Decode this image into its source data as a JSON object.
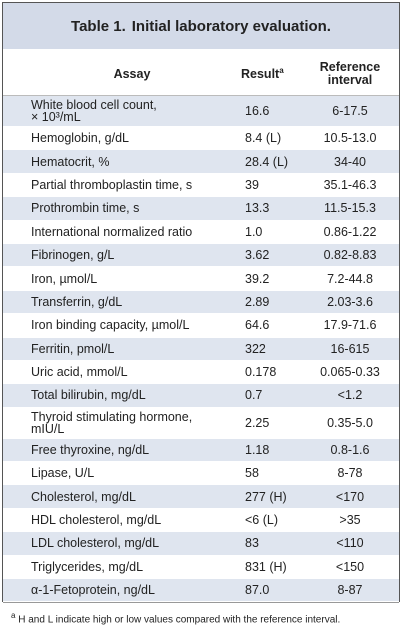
{
  "table": {
    "title_label": "Table 1.",
    "title": "Initial laboratory evaluation.",
    "header": {
      "assay": "Assay",
      "result": "Result",
      "result_note": "a",
      "reference": "Reference\ninterval"
    },
    "rows": [
      [
        "White blood cell count,\n× 10³/mL",
        "16.6",
        "6-17.5"
      ],
      [
        "Hemoglobin, g/dL",
        "8.4 (L)",
        "10.5-13.0"
      ],
      [
        "Hematocrit, %",
        "28.4 (L)",
        "34-40"
      ],
      [
        "Partial thromboplastin time, s",
        "39",
        "35.1-46.3"
      ],
      [
        "Prothrombin time, s",
        "13.3",
        "11.5-15.3"
      ],
      [
        "International normalized ratio",
        "1.0",
        "0.86-1.22"
      ],
      [
        "Fibrinogen, g/L",
        "3.62",
        "0.82-8.83"
      ],
      [
        "Iron, µmol/L",
        "39.2",
        "7.2-44.8"
      ],
      [
        "Transferrin, g/dL",
        "2.89",
        "2.03-3.6"
      ],
      [
        "Iron binding capacity, µmol/L",
        "64.6",
        "17.9-71.6"
      ],
      [
        "Ferritin, pmol/L",
        "322",
        "16-615"
      ],
      [
        "Uric acid, mmol/L",
        "0.178",
        "0.065-0.33"
      ],
      [
        "Total bilirubin, mg/dL",
        "0.7",
        "<1.2"
      ],
      [
        "Thyroid stimulating hormone,\nmIU/L",
        "2.25",
        "0.35-5.0"
      ],
      [
        "Free thyroxine, ng/dL",
        "1.18",
        "0.8-1.6"
      ],
      [
        "Lipase, U/L",
        "58",
        "8-78"
      ],
      [
        "Cholesterol, mg/dL",
        "277 (H)",
        "<170"
      ],
      [
        "HDL cholesterol, mg/dL",
        "<6 (L)",
        ">35"
      ],
      [
        "LDL cholesterol, mg/dL",
        "83",
        "<110"
      ],
      [
        "Triglycerides, mg/dL",
        "831 (H)",
        "<150"
      ],
      [
        "α-1-Fetoprotein, ng/dL",
        "87.0",
        "8-87"
      ]
    ],
    "footnote_marker": "a",
    "footnote": "H and L indicate high or low values compared with the reference interval."
  }
}
